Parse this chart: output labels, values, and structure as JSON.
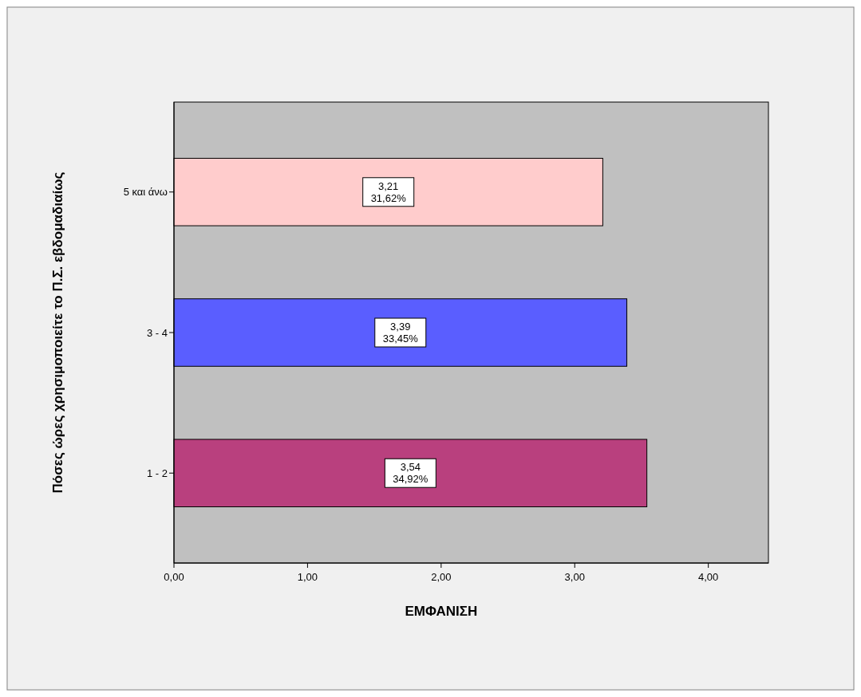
{
  "chart_data": {
    "type": "bar",
    "orientation": "horizontal",
    "xlabel": "ΕΜΦΑΝΙΣΗ",
    "ylabel": "Πόσες ώρες χρησιμοποιείτε το Π.Σ. εβδομαδιαίως",
    "categories": [
      "5 και άνω",
      "3 - 4",
      "1 - 2"
    ],
    "values": [
      3.21,
      3.39,
      3.54
    ],
    "colors": [
      "#ffcccc",
      "#5a5eff",
      "#b9407e"
    ],
    "value_labels": [
      "3,21\n31,62%",
      "3,39\n33,45%",
      "3,54\n34,92%"
    ],
    "xlim": [
      0,
      4.45
    ],
    "xticks": [
      {
        "value": 0,
        "label": "0,00"
      },
      {
        "value": 1,
        "label": "1,00"
      },
      {
        "value": 2,
        "label": "2,00"
      },
      {
        "value": 3,
        "label": "3,00"
      },
      {
        "value": 4,
        "label": "4,00"
      }
    ],
    "grid": false
  }
}
